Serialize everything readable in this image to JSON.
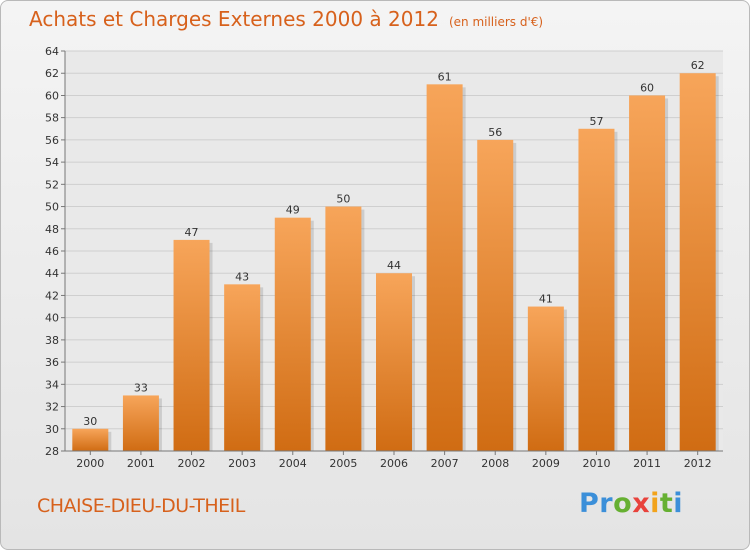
{
  "header": {
    "title": "Achats et Charges Externes 2000 à 2012",
    "unit": "(en milliers d'€)"
  },
  "footer": {
    "town": "CHAISE-DIEU-DU-THEIL",
    "logo": [
      "P",
      "r",
      "o",
      "x",
      "i",
      "t",
      "i"
    ],
    "logo_colors": [
      "#3b8fd9",
      "#3b8fd9",
      "#66b032",
      "#e8423c",
      "#f2a31b",
      "#66b032",
      "#3b8fd9"
    ]
  },
  "chart_data": {
    "type": "bar",
    "title": "Achats et Charges Externes 2000 à 2012",
    "subtitle": "(en milliers d'€)",
    "categories": [
      "2000",
      "2001",
      "2002",
      "2003",
      "2004",
      "2005",
      "2006",
      "2007",
      "2008",
      "2009",
      "2010",
      "2011",
      "2012"
    ],
    "values": [
      30,
      33,
      47,
      43,
      49,
      50,
      44,
      61,
      56,
      41,
      57,
      60,
      62
    ],
    "ylim": [
      28,
      64
    ],
    "yticks": [
      28,
      30,
      32,
      34,
      36,
      38,
      40,
      42,
      44,
      46,
      48,
      50,
      52,
      54,
      56,
      58,
      60,
      62,
      64
    ],
    "grid": true,
    "legend": "none",
    "bar_color_top": "#f7a55a",
    "bar_color_bottom": "#d06c13"
  }
}
